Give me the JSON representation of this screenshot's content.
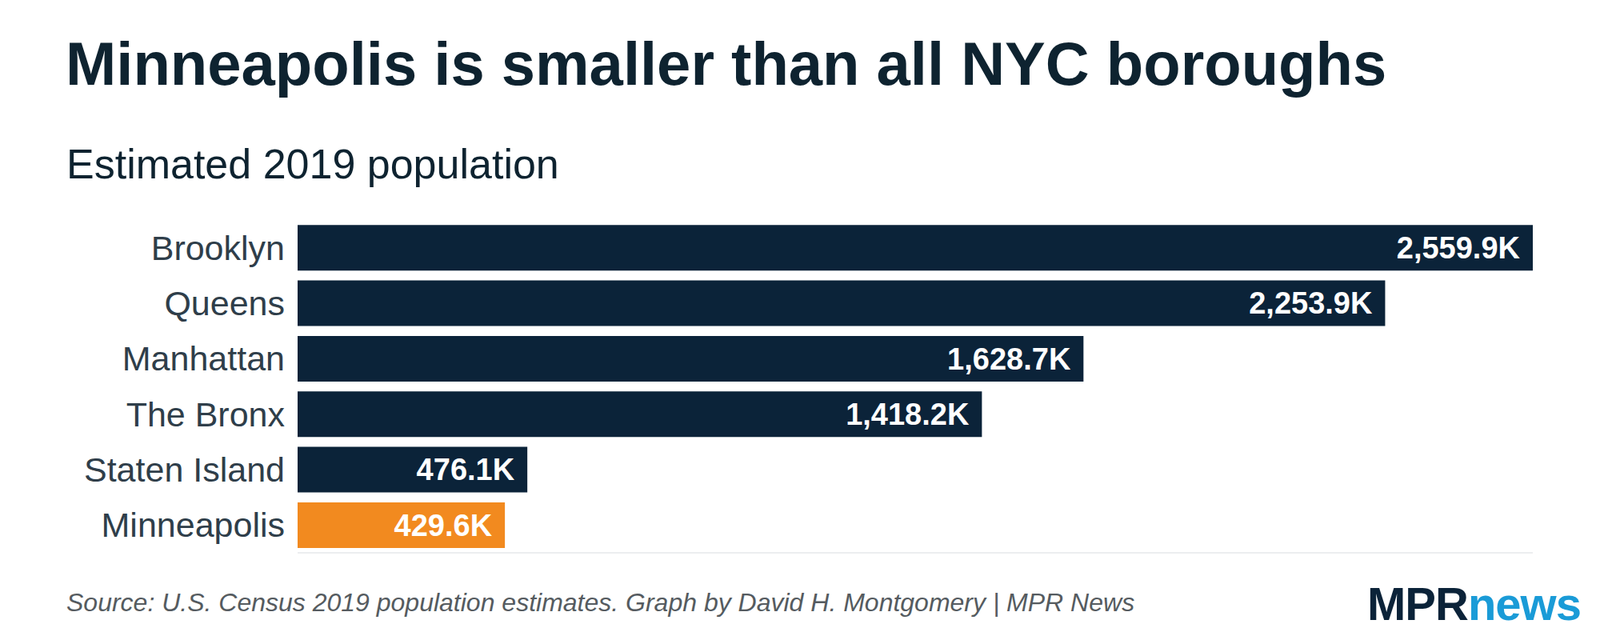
{
  "chart_data": {
    "type": "bar",
    "orientation": "horizontal",
    "title": "Minneapolis is smaller than all NYC boroughs",
    "subtitle": "Estimated 2019 population",
    "categories": [
      "Brooklyn",
      "Queens",
      "Manhattan",
      "The Bronx",
      "Staten Island",
      "Minneapolis"
    ],
    "values": [
      2559.9,
      2253.9,
      1628.7,
      1418.2,
      476.1,
      429.6
    ],
    "value_labels": [
      "2,559.9K",
      "2,253.9K",
      "1,628.7K",
      "1,418.2K",
      "476.1K",
      "429.6K"
    ],
    "colors": [
      "#0b2339",
      "#0b2339",
      "#0b2339",
      "#0b2339",
      "#0b2339",
      "#f28a1f"
    ],
    "xlim": [
      0,
      2559.9
    ],
    "data_labels": true,
    "tick_labels": "y",
    "grid": false,
    "source": "Source: U.S. Census 2019 population estimates. Graph by David H. Montgomery | MPR News",
    "logo": [
      "MPR",
      "news"
    ]
  }
}
